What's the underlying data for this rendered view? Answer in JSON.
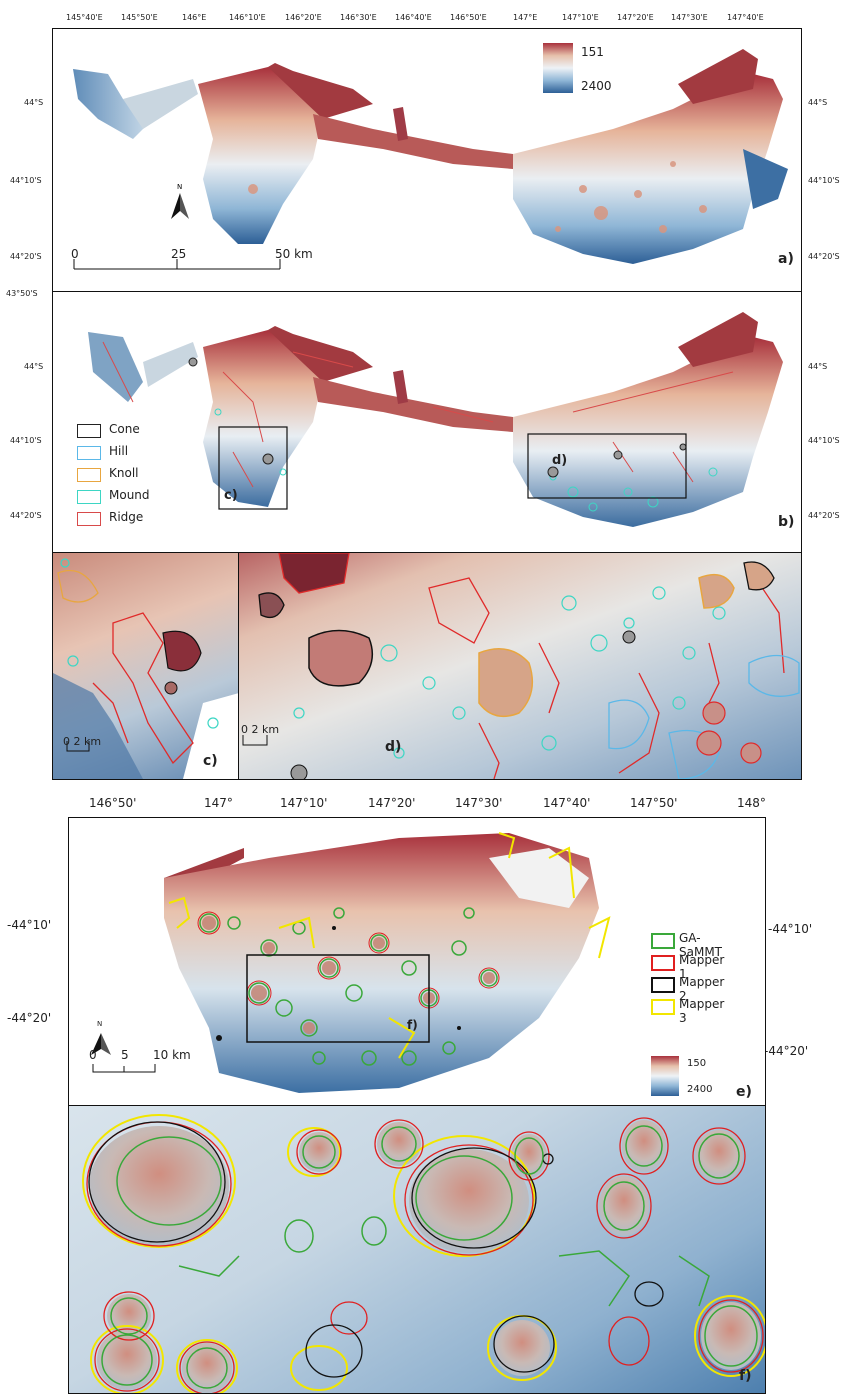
{
  "panel_a": {
    "label": "a)",
    "top_ticks": [
      "145°40'E",
      "145°50'E",
      "146°E",
      "146°10'E",
      "146°20'E",
      "146°30'E",
      "146°40'E",
      "146°50'E",
      "147°E",
      "147°10'E",
      "147°20'E",
      "147°30'E",
      "147°40'E"
    ],
    "left_ticks": [
      "44°S",
      "44°10'S",
      "44°20'S"
    ],
    "right_ticks": [
      "44°S",
      "44°10'S",
      "44°20'S"
    ],
    "depth_max": "151",
    "depth_min": "2400",
    "scale": {
      "t0": "0",
      "t1": "25",
      "t2": "50 km"
    },
    "north": "N"
  },
  "panel_b": {
    "label": "b)",
    "top_left_tick": "43°50'S",
    "left_ticks": [
      "44°S",
      "44°10'S",
      "44°20'S"
    ],
    "right_ticks": [
      "44°S",
      "44°10'S",
      "44°20'S"
    ],
    "legend": [
      {
        "name": "Cone",
        "color": "#222222"
      },
      {
        "name": "Hill",
        "color": "#5bb8e8"
      },
      {
        "name": "Knoll",
        "color": "#e8a640"
      },
      {
        "name": "Mound",
        "color": "#3dd6c4"
      },
      {
        "name": "Ridge",
        "color": "#d84a4a"
      }
    ],
    "box_c": "c)",
    "box_d": "d)"
  },
  "panel_c": {
    "label": "c)",
    "scale": "0  2 km"
  },
  "panel_d": {
    "label": "d)",
    "scale": "0  2 km"
  },
  "panel_e": {
    "label": "e)",
    "top_ticks": [
      "146°50'",
      "147°",
      "147°10'",
      "147°20'",
      "147°30'",
      "147°40'",
      "147°50'",
      "148°"
    ],
    "left_ticks": [
      "-44°10'",
      "-44°20'"
    ],
    "right_ticks": [
      "-44°10'",
      "-44°20'"
    ],
    "legend": [
      {
        "name": "GA-SaMMT",
        "color": "#3aa83a"
      },
      {
        "name": "Mapper 1",
        "color": "#e02020"
      },
      {
        "name": "Mapper 2",
        "color": "#111111"
      },
      {
        "name": "Mapper 3",
        "color": "#f2e600"
      }
    ],
    "depth_max": "150",
    "depth_min": "2400",
    "scale": {
      "t0": "0",
      "t1": "5",
      "t2": "10 km"
    },
    "north": "N",
    "box_f": "f)"
  },
  "panel_f": {
    "label": "f)"
  }
}
